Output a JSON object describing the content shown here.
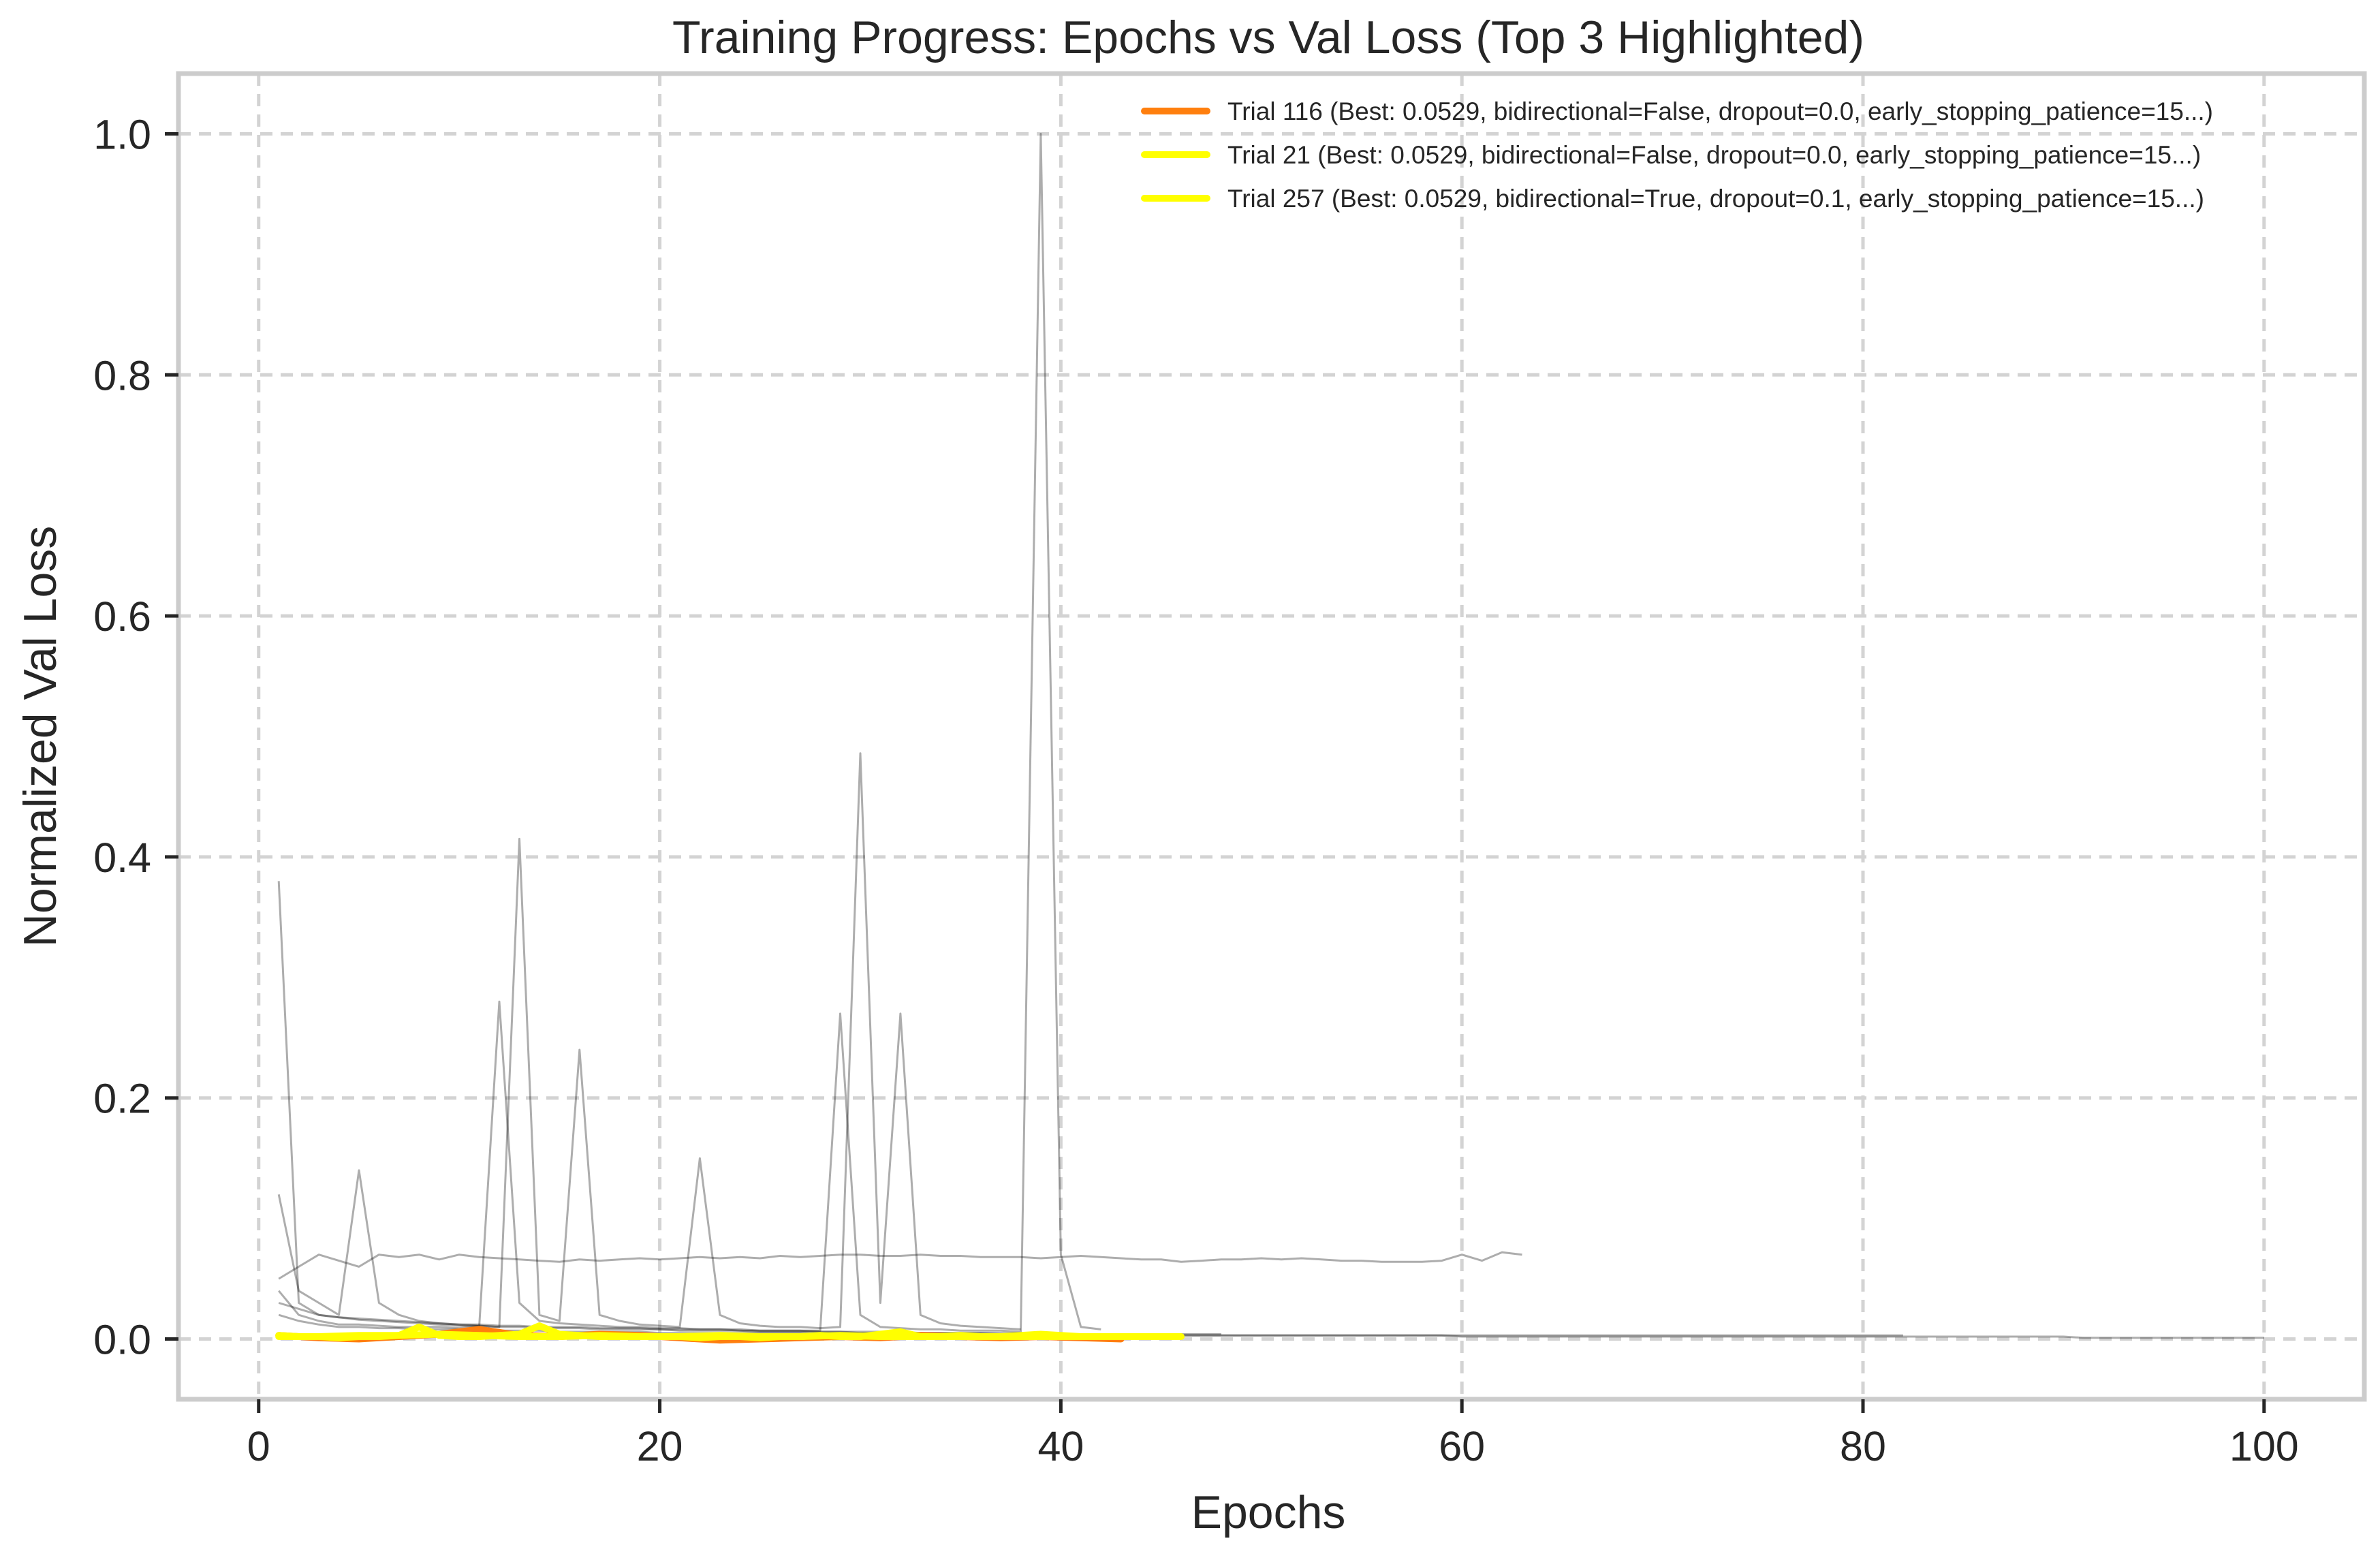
{
  "chart_data": {
    "type": "line",
    "title": "Training Progress: Epochs vs Val Loss (Top 3 Highlighted)",
    "xlabel": "Epochs",
    "ylabel": "Normalized Val Loss",
    "xlim": [
      -4,
      105
    ],
    "ylim": [
      -0.05,
      1.05
    ],
    "xticks": [
      0,
      20,
      40,
      60,
      80,
      100
    ],
    "yticks": [
      0.0,
      0.2,
      0.4,
      0.6,
      0.8,
      1.0
    ],
    "xtick_labels": [
      "0",
      "20",
      "40",
      "60",
      "80",
      "100"
    ],
    "ytick_labels": [
      "0.0",
      "0.2",
      "0.4",
      "0.6",
      "0.8",
      "1.0"
    ],
    "grid": true,
    "legend_position": "top-right",
    "highlighted_series": [
      {
        "name": "Trial 116 (Best: 0.0529, bidirectional=False, dropout=0.0, early_stopping_patience=15...)",
        "color": "#ff7f0e",
        "x": [
          1,
          3,
          5,
          7,
          9,
          11,
          13,
          15,
          17,
          19,
          21,
          23,
          25,
          27,
          29,
          31,
          33,
          35,
          37,
          39,
          41,
          43
        ],
        "y": [
          0.003,
          0.001,
          0.0,
          0.002,
          0.004,
          0.008,
          0.003,
          0.002,
          0.004,
          0.003,
          0.001,
          -0.001,
          0.0,
          0.001,
          0.002,
          0.001,
          0.003,
          0.002,
          0.001,
          0.002,
          0.001,
          0.0
        ]
      },
      {
        "name": "Trial 21 (Best: 0.0529, bidirectional=False, dropout=0.0, early_stopping_patience=15...)",
        "color": "#ffff00",
        "x": [
          1,
          2,
          3,
          4,
          5,
          6,
          7,
          8,
          9,
          10,
          11,
          12,
          13,
          14,
          15,
          16,
          17,
          18,
          19,
          20,
          21,
          22,
          23,
          24,
          25,
          26,
          27,
          28,
          29,
          30,
          31,
          32,
          33,
          34,
          35,
          36,
          37,
          38,
          39,
          40,
          41,
          42,
          43,
          44,
          45,
          46
        ],
        "y": [
          0.003,
          0.002,
          0.002,
          0.001,
          0.002,
          0.002,
          0.003,
          0.01,
          0.003,
          0.002,
          0.002,
          0.003,
          0.004,
          0.011,
          0.004,
          0.003,
          0.002,
          0.002,
          0.002,
          0.002,
          0.002,
          0.001,
          0.002,
          0.002,
          0.001,
          0.002,
          0.002,
          0.003,
          0.002,
          0.002,
          0.004,
          0.006,
          0.002,
          0.002,
          0.003,
          0.002,
          0.002,
          0.003,
          0.004,
          0.003,
          0.002,
          0.002,
          0.002,
          0.002,
          0.002,
          0.002
        ]
      },
      {
        "name": "Trial 257 (Best: 0.0529, bidirectional=True, dropout=0.1, early_stopping_patience=15...)",
        "color": "#ffff00",
        "x": [
          1,
          3,
          5,
          7,
          9,
          11,
          13,
          15,
          17,
          19,
          21,
          23,
          25,
          27,
          29,
          31,
          33,
          35,
          37,
          39,
          41,
          43,
          45
        ],
        "y": [
          0.002,
          0.002,
          0.003,
          0.003,
          0.004,
          0.003,
          0.002,
          0.002,
          0.003,
          0.002,
          0.002,
          0.003,
          0.002,
          0.002,
          0.003,
          0.002,
          0.002,
          0.002,
          0.002,
          0.002,
          0.002,
          0.002,
          0.002
        ]
      }
    ],
    "background_series": [
      {
        "x": [
          1,
          2,
          3,
          4,
          5,
          6,
          7,
          8,
          9,
          10,
          11,
          12,
          13,
          14,
          15,
          16,
          17,
          18,
          19,
          20,
          21,
          22,
          23,
          24,
          25,
          26,
          27,
          28,
          29,
          30,
          31,
          32,
          33,
          34,
          35,
          36,
          37,
          38,
          39,
          40,
          41,
          42,
          43,
          44,
          45,
          46,
          47,
          48
        ],
        "y": [
          0.38,
          0.03,
          0.02,
          0.018,
          0.017,
          0.016,
          0.015,
          0.014,
          0.013,
          0.012,
          0.012,
          0.011,
          0.011,
          0.01,
          0.01,
          0.01,
          0.009,
          0.009,
          0.009,
          0.008,
          0.008,
          0.008,
          0.008,
          0.007,
          0.007,
          0.007,
          0.007,
          0.006,
          0.006,
          0.006,
          0.006,
          0.006,
          0.005,
          0.005,
          0.005,
          0.005,
          0.005,
          0.005,
          0.005,
          0.004,
          0.004,
          0.004,
          0.004,
          0.004,
          0.004,
          0.004,
          0.004,
          0.004
        ]
      },
      {
        "x": [
          1,
          2,
          3,
          4,
          5,
          6,
          7,
          8,
          9,
          10,
          11,
          12,
          13,
          14,
          15,
          16,
          17,
          18,
          19,
          20,
          21,
          22,
          23,
          24,
          25,
          26,
          27,
          28,
          29,
          30,
          31,
          32,
          33,
          34,
          35,
          36,
          37,
          38,
          39,
          40,
          41,
          42
        ],
        "y": [
          0.04,
          0.02,
          0.015,
          0.012,
          0.012,
          0.011,
          0.01,
          0.01,
          0.01,
          0.009,
          0.011,
          0.28,
          0.03,
          0.015,
          0.013,
          0.012,
          0.011,
          0.01,
          0.01,
          0.009,
          0.009,
          0.008,
          0.008,
          0.008,
          0.007,
          0.007,
          0.007,
          0.007,
          0.27,
          0.02,
          0.01,
          0.009,
          0.008,
          0.008,
          0.007,
          0.007,
          0.007,
          0.006,
          1.0,
          0.07,
          0.01,
          0.008
        ]
      },
      {
        "x": [
          1,
          2,
          3,
          4,
          5,
          6,
          7,
          8,
          9,
          10,
          11,
          12,
          13,
          14,
          15,
          16,
          17,
          18,
          19,
          20,
          21,
          22,
          23,
          24,
          25,
          26,
          27,
          28,
          29,
          30,
          31,
          32,
          33,
          34,
          35,
          36,
          37,
          38
        ],
        "y": [
          0.12,
          0.04,
          0.03,
          0.02,
          0.14,
          0.03,
          0.02,
          0.015,
          0.013,
          0.012,
          0.011,
          0.01,
          0.415,
          0.02,
          0.015,
          0.24,
          0.02,
          0.015,
          0.012,
          0.011,
          0.01,
          0.15,
          0.02,
          0.013,
          0.011,
          0.01,
          0.01,
          0.009,
          0.01,
          0.486,
          0.03,
          0.27,
          0.02,
          0.013,
          0.011,
          0.01,
          0.009,
          0.008
        ]
      },
      {
        "x": [
          1,
          2,
          3,
          4,
          5,
          6,
          7,
          8,
          9,
          10,
          11,
          12,
          13,
          14,
          15,
          16,
          17,
          18,
          19,
          20,
          21,
          22,
          23,
          24,
          25,
          26,
          27,
          28,
          29,
          30,
          31,
          32,
          33,
          34,
          35,
          36,
          37,
          38,
          39,
          40,
          41,
          42,
          43,
          44,
          45,
          46,
          47,
          48,
          49,
          50,
          51,
          52,
          53,
          54,
          55,
          56,
          57,
          58,
          59,
          60,
          61,
          62,
          63
        ],
        "y": [
          0.05,
          0.06,
          0.07,
          0.065,
          0.06,
          0.07,
          0.068,
          0.07,
          0.066,
          0.07,
          0.068,
          0.067,
          0.066,
          0.065,
          0.064,
          0.066,
          0.065,
          0.066,
          0.067,
          0.066,
          0.067,
          0.068,
          0.067,
          0.068,
          0.067,
          0.069,
          0.068,
          0.069,
          0.07,
          0.07,
          0.069,
          0.069,
          0.07,
          0.069,
          0.069,
          0.068,
          0.068,
          0.068,
          0.067,
          0.068,
          0.069,
          0.068,
          0.067,
          0.066,
          0.066,
          0.064,
          0.065,
          0.066,
          0.066,
          0.067,
          0.066,
          0.067,
          0.066,
          0.065,
          0.065,
          0.064,
          0.064,
          0.064,
          0.065,
          0.07,
          0.065,
          0.072,
          0.07
        ]
      },
      {
        "x": [
          1,
          2,
          3,
          4,
          5,
          6,
          7,
          8,
          9,
          10,
          11,
          12,
          13,
          14,
          15,
          16,
          17,
          18,
          19,
          20,
          21,
          22,
          23,
          24,
          25,
          26,
          27,
          28,
          29,
          30,
          31,
          32,
          33,
          34,
          35,
          36,
          37,
          38,
          39,
          40,
          41,
          42,
          43,
          44,
          45,
          46,
          47,
          48,
          49,
          50,
          51,
          52,
          53,
          54,
          55,
          56,
          57,
          58,
          59,
          60,
          61,
          62,
          63,
          64,
          65,
          66,
          67,
          68,
          69,
          70,
          71,
          72,
          73,
          74,
          75,
          76,
          77,
          78,
          79,
          80,
          81,
          82,
          83,
          84,
          85,
          86,
          87,
          88,
          89,
          90,
          91,
          92,
          93,
          94,
          95,
          96,
          97,
          98,
          99,
          100
        ],
        "y": [
          0.03,
          0.025,
          0.02,
          0.018,
          0.016,
          0.015,
          0.014,
          0.013,
          0.012,
          0.011,
          0.011,
          0.01,
          0.01,
          0.009,
          0.009,
          0.009,
          0.008,
          0.008,
          0.008,
          0.008,
          0.007,
          0.007,
          0.007,
          0.007,
          0.006,
          0.006,
          0.006,
          0.006,
          0.006,
          0.005,
          0.005,
          0.005,
          0.005,
          0.005,
          0.005,
          0.005,
          0.004,
          0.004,
          0.004,
          0.004,
          0.004,
          0.004,
          0.004,
          0.004,
          0.003,
          0.003,
          0.003,
          0.003,
          0.003,
          0.003,
          0.003,
          0.003,
          0.003,
          0.003,
          0.003,
          0.003,
          0.003,
          0.003,
          0.003,
          0.002,
          0.002,
          0.002,
          0.002,
          0.002,
          0.002,
          0.002,
          0.002,
          0.002,
          0.002,
          0.002,
          0.002,
          0.002,
          0.002,
          0.002,
          0.002,
          0.002,
          0.002,
          0.002,
          0.002,
          0.002,
          0.002,
          0.002,
          0.002,
          0.002,
          0.002,
          0.002,
          0.002,
          0.002,
          0.002,
          0.002,
          0.001,
          0.001,
          0.001,
          0.001,
          0.001,
          0.001,
          0.001,
          0.001,
          0.001,
          0.001
        ]
      },
      {
        "x": [
          1,
          2,
          3,
          4,
          5,
          6,
          7,
          8,
          9,
          10,
          11,
          12,
          13,
          14,
          15,
          16,
          17,
          18,
          19,
          20,
          21,
          22,
          23,
          24,
          25,
          26,
          27,
          28,
          29,
          30,
          31,
          32,
          33,
          34,
          35,
          36,
          37,
          38,
          39,
          40,
          41,
          42,
          43,
          44,
          45,
          46,
          47,
          48,
          49,
          50,
          51,
          52,
          53,
          54,
          55,
          56,
          57,
          58,
          59,
          60,
          61,
          62,
          63,
          64,
          65,
          66,
          67,
          68,
          69,
          70,
          71,
          72,
          73,
          74,
          75,
          76,
          77,
          78,
          79,
          80,
          81,
          82
        ],
        "y": [
          0.02,
          0.015,
          0.012,
          0.01,
          0.01,
          0.009,
          0.009,
          0.008,
          0.008,
          0.008,
          0.007,
          0.007,
          0.007,
          0.007,
          0.006,
          0.006,
          0.006,
          0.006,
          0.006,
          0.005,
          0.005,
          0.005,
          0.005,
          0.005,
          0.005,
          0.005,
          0.005,
          0.004,
          0.004,
          0.004,
          0.004,
          0.004,
          0.004,
          0.004,
          0.004,
          0.004,
          0.004,
          0.004,
          0.004,
          0.003,
          0.003,
          0.003,
          0.003,
          0.003,
          0.003,
          0.003,
          0.003,
          0.003,
          0.003,
          0.003,
          0.003,
          0.003,
          0.003,
          0.003,
          0.003,
          0.003,
          0.003,
          0.003,
          0.003,
          0.003,
          0.003,
          0.003,
          0.003,
          0.003,
          0.003,
          0.003,
          0.003,
          0.003,
          0.003,
          0.003,
          0.003,
          0.003,
          0.003,
          0.003,
          0.003,
          0.003,
          0.003,
          0.003,
          0.003,
          0.003,
          0.003,
          0.003
        ]
      }
    ]
  }
}
